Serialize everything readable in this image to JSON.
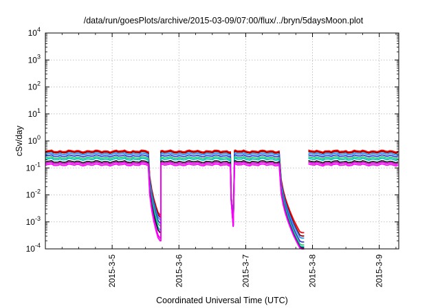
{
  "chart_data": {
    "type": "line",
    "title": "/data/run/goesPlots/archive/2015-03-09/07:00/flux/../bryn/5daysMoon.plot",
    "xlabel": "Coordinated Universal Time (UTC)",
    "ylabel": "cSv/day",
    "y_scale": "log",
    "ylim": [
      0.0001,
      10000
    ],
    "xlim": [
      "2015-03-04 00:00",
      "2015-03-09 07:00"
    ],
    "grid": true,
    "y_ticks": [
      {
        "base": "10",
        "exp": "4"
      },
      {
        "base": "10",
        "exp": "3"
      },
      {
        "base": "10",
        "exp": "2"
      },
      {
        "base": "10",
        "exp": "1"
      },
      {
        "base": "10",
        "exp": "0"
      },
      {
        "base": "10",
        "exp": "-1"
      },
      {
        "base": "10",
        "exp": "-2"
      },
      {
        "base": "10",
        "exp": "-3"
      },
      {
        "base": "10",
        "exp": "-4"
      }
    ],
    "x_ticks": [
      "2015-3-5",
      "2015-3-6",
      "2015-3-7",
      "2015-3-8",
      "2015-3-9"
    ],
    "x_tick_times": [
      "2015-03-05 00:00",
      "2015-03-06 00:00",
      "2015-03-07 00:00",
      "2015-03-08 00:00",
      "2015-03-09 00:00"
    ],
    "colors": [
      "#ff0000",
      "#8b0000",
      "#1e90ff",
      "#3a3adf",
      "#2ecc71",
      "#00c0c0",
      "#e600e6",
      "#ff00ff",
      "#1a1a1a"
    ],
    "series": [
      {
        "color": "#ff0000",
        "base": 0.42,
        "dropout_minima": [
          0.0018,
          0.0003,
          0.0004
        ]
      },
      {
        "color": "#8b0000",
        "base": 0.38,
        "dropout_minima": [
          0.0015,
          0.0003,
          0.0003
        ]
      },
      {
        "color": "#1e90ff",
        "base": 0.33,
        "dropout_minima": [
          0.0012,
          0.0003,
          0.00025
        ]
      },
      {
        "color": "#3a3adf",
        "base": 0.28,
        "dropout_minima": [
          0.0009,
          0.0003,
          0.00018
        ]
      },
      {
        "color": "#2ecc71",
        "base": 0.24,
        "dropout_minima": [
          0.0007,
          0.0003,
          0.00014
        ]
      },
      {
        "color": "#00c0c0",
        "base": 0.21,
        "dropout_minima": [
          0.0005,
          0.0003,
          0.00012
        ]
      },
      {
        "color": "#1a1a1a",
        "base": 0.17,
        "dropout_minima": [
          0.0004,
          0.0003,
          0.00011
        ]
      },
      {
        "color": "#e600e6",
        "base": 0.15,
        "dropout_minima": [
          0.00025,
          0.0003,
          0.0001
        ]
      },
      {
        "color": "#ff00ff",
        "base": 0.13,
        "dropout_minima": [
          0.0002,
          0.0003,
          0.0001
        ]
      }
    ],
    "dropouts": [
      {
        "start": "2015-03-05 13:00",
        "end": "2015-03-05 17:30"
      },
      {
        "start": "2015-03-06 18:30",
        "end": "2015-03-06 20:00"
      },
      {
        "start": "2015-03-07 12:00",
        "end": "2015-03-07 21:00"
      }
    ],
    "gaps": [
      {
        "start": "2015-03-07 21:00",
        "end": "2015-03-07 22:30"
      }
    ]
  }
}
